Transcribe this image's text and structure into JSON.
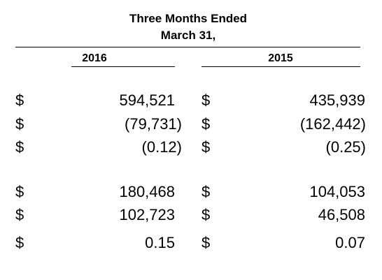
{
  "header": {
    "line1": "Three Months Ended",
    "line2": "March 31,",
    "col_2016": "2016",
    "col_2015": "2015"
  },
  "rows": [
    {
      "cur1": "$",
      "v2016": "594,521",
      "cur2": "$",
      "v2015": "435,939"
    },
    {
      "cur1": "$",
      "v2016": "(79,731)",
      "cur2": "$",
      "v2015": "(162,442)"
    },
    {
      "cur1": "$",
      "v2016": "(0.12)",
      "cur2": "$",
      "v2015": "(0.25)"
    },
    {
      "cur1": "$",
      "v2016": "180,468",
      "cur2": "$",
      "v2015": "104,053"
    },
    {
      "cur1": "$",
      "v2016": "102,723",
      "cur2": "$",
      "v2015": "46,508"
    },
    {
      "cur1": "$",
      "v2016": "0.15",
      "cur2": "$",
      "v2015": "0.07"
    }
  ]
}
